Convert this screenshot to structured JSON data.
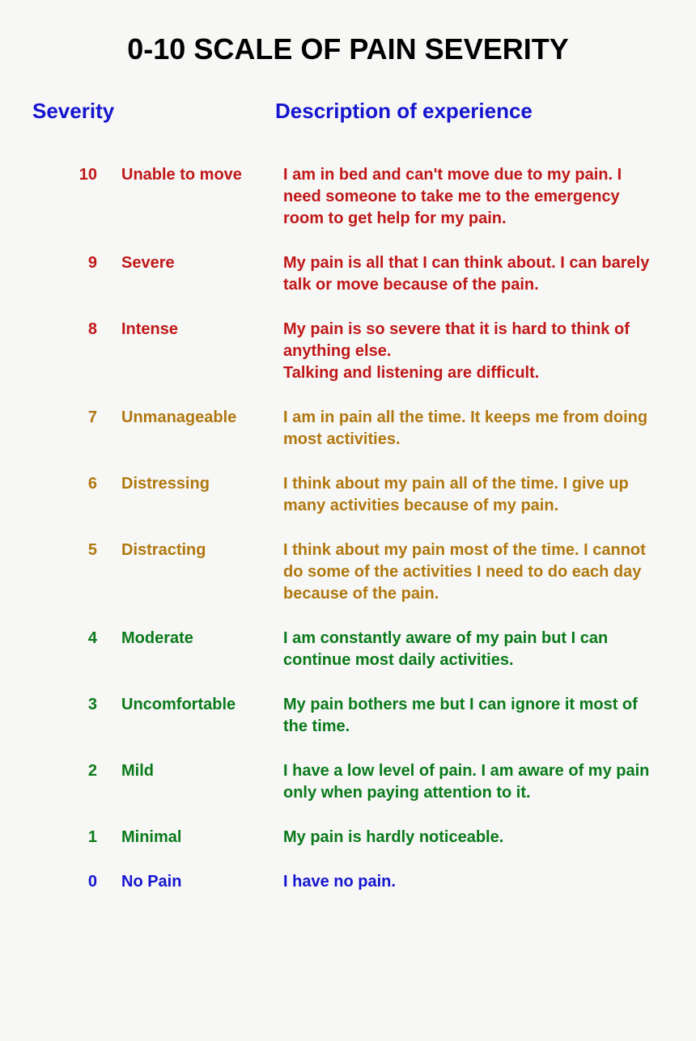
{
  "title": "0-10 SCALE OF PAIN SEVERITY",
  "headers": {
    "severity": "Severity",
    "description": "Description of experience"
  },
  "colors": {
    "background": "#f7f7f5",
    "title": "#000000",
    "header": "#1515d0",
    "red": "#c01818",
    "amber": "#b07810",
    "green": "#0a7a1a",
    "blue": "#1515d0"
  },
  "typography": {
    "title_fontsize": 36,
    "header_fontsize": 26,
    "row_fontsize": 20,
    "font_family": "Arial"
  },
  "layout": {
    "col_level_width": 80,
    "col_label_width": 190,
    "row_gap": 28
  },
  "rows": [
    {
      "level": "10",
      "label": "Unable to move",
      "description": "I am in bed and can't move due to my pain. I need someone to take me to the emergency room to get help for my pain.",
      "color": "red"
    },
    {
      "level": "9",
      "label": "Severe",
      "description": "My pain is all that I can think about. I can barely talk or move because of the pain.",
      "color": "red"
    },
    {
      "level": "8",
      "label": "Intense",
      "description": "My pain is so severe that it is hard to think of anything else.\nTalking and listening are difficult.",
      "color": "red"
    },
    {
      "level": "7",
      "label": "Unmanageable",
      "description": "I am in pain all the time. It keeps me from doing most activities.",
      "color": "amber"
    },
    {
      "level": "6",
      "label": "Distressing",
      "description": "I think about my pain all of the time. I give up many activities because of my pain.",
      "color": "amber"
    },
    {
      "level": "5",
      "label": "Distracting",
      "description": "I think about my pain most of the time. I cannot do some of the activities I need to do each day because of the pain.",
      "color": "amber"
    },
    {
      "level": "4",
      "label": "Moderate",
      "description": "I am constantly aware of my pain but I can continue most daily activities.",
      "color": "green"
    },
    {
      "level": "3",
      "label": "Uncomfortable",
      "description": "My pain bothers me but I can ignore it most of the time.",
      "color": "green"
    },
    {
      "level": "2",
      "label": "Mild",
      "description": "I have a low level of pain. I am aware of my pain only when paying attention to it.",
      "color": "green"
    },
    {
      "level": "1",
      "label": "Minimal",
      "description": "My pain is hardly noticeable.",
      "color": "green"
    },
    {
      "level": "0",
      "label": "No Pain",
      "description": "I have no pain.",
      "color": "blue"
    }
  ]
}
